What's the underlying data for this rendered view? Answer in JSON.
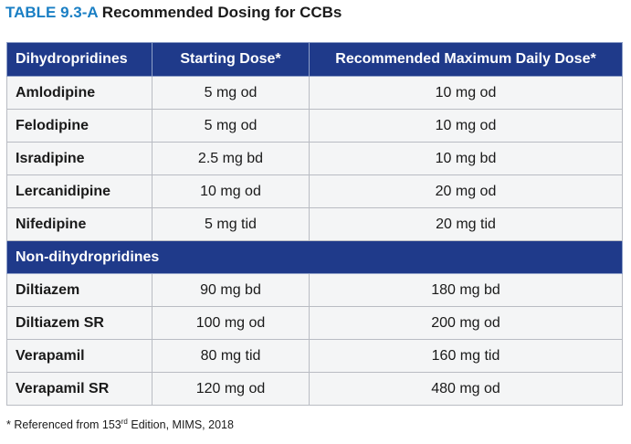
{
  "title": {
    "label": "TABLE 9.3-A",
    "text": "Recommended Dosing for CCBs"
  },
  "table": {
    "headers": [
      "Dihydropridines",
      "Starting Dose*",
      "Recommended Maximum Daily Dose*"
    ],
    "group1_rows": [
      {
        "drug": "Amlodipine",
        "start": "5 mg od",
        "max": "10 mg od"
      },
      {
        "drug": "Felodipine",
        "start": "5 mg od",
        "max": "10 mg od"
      },
      {
        "drug": "Isradipine",
        "start": "2.5 mg bd",
        "max": "10 mg bd"
      },
      {
        "drug": "Lercanidipine",
        "start": "10 mg od",
        "max": "20 mg od"
      },
      {
        "drug": "Nifedipine",
        "start": "5 mg tid",
        "max": "20 mg tid"
      }
    ],
    "section2_label": "Non-dihydropridines",
    "group2_rows": [
      {
        "drug": "Diltiazem",
        "start": "90 mg bd",
        "max": "180 mg bd"
      },
      {
        "drug": "Diltiazem SR",
        "start": "100 mg od",
        "max": "200 mg od"
      },
      {
        "drug": "Verapamil",
        "start": "80 mg tid",
        "max": "160 mg tid"
      },
      {
        "drug": "Verapamil SR",
        "start": "120 mg od",
        "max": "480 mg od"
      }
    ]
  },
  "footnote": {
    "prefix": "* Referenced from 153",
    "sup": "rd",
    "suffix": " Edition, MIMS, 2018"
  }
}
